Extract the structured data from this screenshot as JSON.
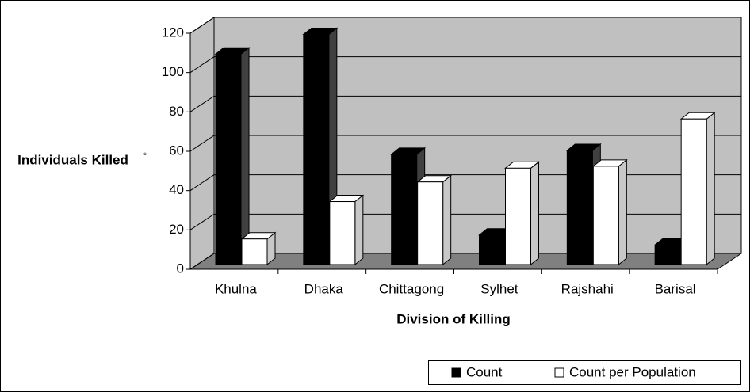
{
  "chart_data": {
    "type": "bar3d",
    "y_label": "Individuals Killed",
    "y_label_note": "*",
    "x_label": "Division of Killing",
    "categories": [
      "Khulna",
      "Dhaka",
      "Chittagong",
      "Sylhet",
      "Rajshahi",
      "Barisal"
    ],
    "series": [
      {
        "name": "Count",
        "color": "#000000",
        "values": [
          107,
          117,
          56,
          15,
          58,
          10
        ]
      },
      {
        "name": "Count per Population",
        "color": "#ffffff",
        "values": [
          13,
          32,
          42,
          49,
          50,
          74
        ]
      }
    ],
    "ylim": [
      0,
      120
    ],
    "yticks": [
      0,
      20,
      40,
      60,
      80,
      100,
      120
    ],
    "grid": true,
    "legend": "bottom-right"
  }
}
